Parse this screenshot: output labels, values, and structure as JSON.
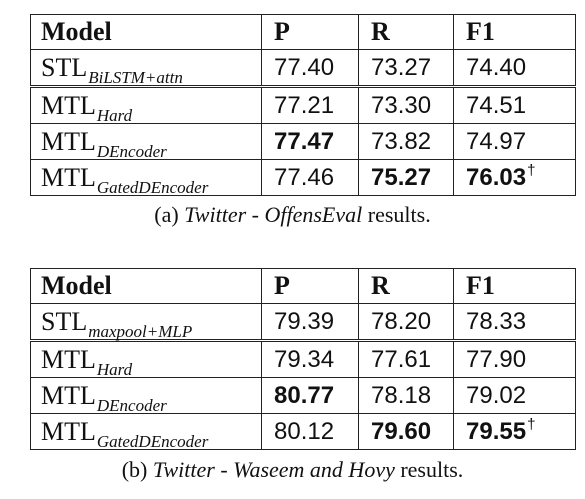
{
  "tables": [
    {
      "headers": [
        "Model",
        "P",
        "R",
        "F1"
      ],
      "rows": [
        {
          "model_base": "STL",
          "model_sub": "BiLSTM+attn",
          "p": "77.40",
          "r": "73.27",
          "f1": "74.40",
          "p_bold": false,
          "r_bold": false,
          "f1_bold": false,
          "f1_dagger": ""
        },
        {
          "model_base": "MTL",
          "model_sub": "Hard",
          "p": "77.21",
          "r": "73.30",
          "f1": "74.51",
          "p_bold": false,
          "r_bold": false,
          "f1_bold": false,
          "f1_dagger": ""
        },
        {
          "model_base": "MTL",
          "model_sub": "DEncoder",
          "p": "77.47",
          "r": "73.82",
          "f1": "74.97",
          "p_bold": true,
          "r_bold": false,
          "f1_bold": false,
          "f1_dagger": ""
        },
        {
          "model_base": "MTL",
          "model_sub": "GatedDEncoder",
          "p": "77.46",
          "r": "75.27",
          "f1": "76.03",
          "p_bold": false,
          "r_bold": true,
          "f1_bold": true,
          "f1_dagger": "†"
        }
      ],
      "caption": {
        "label": "(a)",
        "dataset": "Twitter",
        "dash": "-",
        "task": "OffensEval",
        "suffix": "results."
      }
    },
    {
      "headers": [
        "Model",
        "P",
        "R",
        "F1"
      ],
      "rows": [
        {
          "model_base": "STL",
          "model_sub": "maxpool+MLP",
          "p": "79.39",
          "r": "78.20",
          "f1": "78.33",
          "p_bold": false,
          "r_bold": false,
          "f1_bold": false,
          "f1_dagger": ""
        },
        {
          "model_base": "MTL",
          "model_sub": "Hard",
          "p": "79.34",
          "r": "77.61",
          "f1": "77.90",
          "p_bold": false,
          "r_bold": false,
          "f1_bold": false,
          "f1_dagger": ""
        },
        {
          "model_base": "MTL",
          "model_sub": "DEncoder",
          "p": "80.77",
          "r": "78.18",
          "f1": "79.02",
          "p_bold": true,
          "r_bold": false,
          "f1_bold": false,
          "f1_dagger": ""
        },
        {
          "model_base": "MTL",
          "model_sub": "GatedDEncoder",
          "p": "80.12",
          "r": "79.60",
          "f1": "79.55",
          "p_bold": false,
          "r_bold": true,
          "f1_bold": true,
          "f1_dagger": "†"
        }
      ],
      "caption": {
        "label": "(b)",
        "dataset": "Twitter",
        "dash": "-",
        "task": "Waseem and Hovy",
        "suffix": "results."
      }
    }
  ]
}
